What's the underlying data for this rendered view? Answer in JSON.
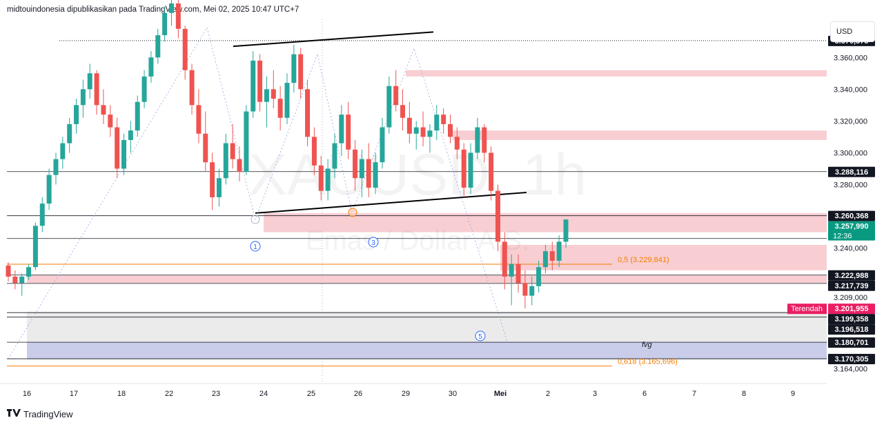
{
  "header": {
    "title": "midtouindonesia dipublikasikan pada TradingView.com, Mei 02, 2025 10:47 UTC+7"
  },
  "watermark": {
    "symbol": "XAUUSD, 1h",
    "subtitle": "Emas / Dollar A.S."
  },
  "currency": "USD",
  "footer": {
    "brand": "TradingView",
    "logo_icon": "tradingview-logo-icon"
  },
  "colors": {
    "up": "#26a69a",
    "down": "#ef5350",
    "zone": "#f7c5ca",
    "zone_blue": "#c5cae9",
    "zone_gray": "#e8e8e8",
    "fib": "#f57c00",
    "current": "#089981",
    "low_badge": "#e91e63"
  },
  "chart_data": {
    "type": "candlestick",
    "timeframe": "1h",
    "price_axis": {
      "range": [
        3156,
        3384
      ],
      "ticks": [
        "3.360,000",
        "3.340,000",
        "3.320,000",
        "3.300,000",
        "3.280,000",
        "3.240,000",
        "3.209,000",
        "3.164,000"
      ],
      "tick_values": [
        3360,
        3340,
        3320,
        3300,
        3280,
        3240,
        3209,
        3164
      ]
    },
    "time_axis": {
      "labels": [
        "16",
        "17",
        "18",
        "22",
        "23",
        "24",
        "25",
        "26",
        "29",
        "30",
        "Mei",
        "2",
        "3",
        "6",
        "7",
        "8",
        "9"
      ]
    },
    "price_labels": [
      {
        "value": 3370.575,
        "text": "3.370,575",
        "style": "dark"
      },
      {
        "value": 3288.116,
        "text": "3.288,116",
        "style": "dark"
      },
      {
        "value": 3260.368,
        "text": "3.260,368",
        "style": "dark"
      },
      {
        "value": 3257.99,
        "text": "3.257,990",
        "style": "current",
        "countdown": "12:36"
      },
      {
        "value": 3222.988,
        "text": "3.222,988",
        "style": "dark"
      },
      {
        "value": 3217.739,
        "text": "3.217,739",
        "style": "dark"
      },
      {
        "value": 3201.955,
        "text": "3.201,955",
        "style": "low",
        "label": "Terendah"
      },
      {
        "value": 3199.358,
        "text": "3.199,358",
        "style": "dark"
      },
      {
        "value": 3196.518,
        "text": "3.196,518",
        "style": "dark"
      },
      {
        "value": 3180.701,
        "text": "3.180,701",
        "style": "dark"
      },
      {
        "value": 3170.305,
        "text": "3.170,305",
        "style": "dark"
      }
    ],
    "horizontal_lines": [
      3370.575,
      3288.116,
      3260.368,
      3246,
      3222.988,
      3217.739,
      3199.358,
      3196.518,
      3180.701,
      3170.305
    ],
    "zones": [
      {
        "type": "supply",
        "from": 3348,
        "to": 3352,
        "x_start": "29",
        "color": "zone"
      },
      {
        "type": "supply",
        "from": 3308,
        "to": 3314,
        "x_start": "30",
        "color": "zone"
      },
      {
        "type": "supply",
        "from": 3250,
        "to": 3262,
        "x_start": "24",
        "color": "zone"
      },
      {
        "type": "supply",
        "from": 3226,
        "to": 3242,
        "x_start": "Mei",
        "color": "zone"
      },
      {
        "type": "supply",
        "from": 3218,
        "to": 3223,
        "x_start": "16",
        "color": "zone"
      },
      {
        "type": "demand",
        "from": 3170,
        "to": 3200,
        "x_start": "16",
        "color": "zone_gray"
      },
      {
        "type": "demand",
        "from": 3170,
        "to": 3181,
        "x_start": "16",
        "color": "zone_blue"
      }
    ],
    "fib_levels": [
      {
        "ratio": "0,5",
        "value": 3229.841,
        "text": "0,5 (3.229,841)"
      },
      {
        "ratio": "0,618",
        "value": 3165.696,
        "text": "0,618 (3.165,696)"
      }
    ],
    "annotations": [
      {
        "text": "fvg"
      }
    ],
    "wave_labels": [
      "1",
      "3",
      "5"
    ],
    "trendlines": [
      {
        "name": "upper",
        "from": [
          "23",
          3367
        ],
        "to": [
          "29",
          3376
        ]
      },
      {
        "name": "lower",
        "from": [
          "24",
          3262
        ],
        "to": [
          "Mei",
          3275
        ]
      }
    ],
    "candles": [
      [
        3229,
        3231,
        3219,
        3222
      ],
      [
        3222,
        3226,
        3214,
        3218
      ],
      [
        3218,
        3224,
        3210,
        3222
      ],
      [
        3222,
        3230,
        3220,
        3228
      ],
      [
        3228,
        3256,
        3226,
        3254
      ],
      [
        3254,
        3272,
        3250,
        3268
      ],
      [
        3268,
        3290,
        3264,
        3286
      ],
      [
        3286,
        3300,
        3280,
        3296
      ],
      [
        3296,
        3310,
        3290,
        3306
      ],
      [
        3306,
        3322,
        3300,
        3318
      ],
      [
        3318,
        3334,
        3312,
        3330
      ],
      [
        3330,
        3346,
        3322,
        3340
      ],
      [
        3340,
        3356,
        3334,
        3350
      ],
      [
        3350,
        3352,
        3324,
        3330
      ],
      [
        3330,
        3340,
        3318,
        3324
      ],
      [
        3324,
        3330,
        3310,
        3316
      ],
      [
        3316,
        3322,
        3284,
        3290
      ],
      [
        3290,
        3312,
        3286,
        3308
      ],
      [
        3308,
        3320,
        3300,
        3314
      ],
      [
        3314,
        3336,
        3310,
        3332
      ],
      [
        3332,
        3352,
        3328,
        3348
      ],
      [
        3348,
        3364,
        3344,
        3360
      ],
      [
        3360,
        3378,
        3356,
        3374
      ],
      [
        3374,
        3392,
        3370,
        3388
      ],
      [
        3388,
        3398,
        3380,
        3394
      ],
      [
        3394,
        3398,
        3372,
        3378
      ],
      [
        3378,
        3380,
        3346,
        3352
      ],
      [
        3352,
        3356,
        3324,
        3330
      ],
      [
        3330,
        3340,
        3306,
        3312
      ],
      [
        3312,
        3326,
        3288,
        3294
      ],
      [
        3294,
        3300,
        3264,
        3272
      ],
      [
        3272,
        3290,
        3266,
        3284
      ],
      [
        3284,
        3312,
        3280,
        3306
      ],
      [
        3306,
        3318,
        3290,
        3296
      ],
      [
        3296,
        3304,
        3282,
        3288
      ],
      [
        3288,
        3330,
        3286,
        3326
      ],
      [
        3326,
        3364,
        3322,
        3358
      ],
      [
        3358,
        3362,
        3326,
        3332
      ],
      [
        3332,
        3348,
        3316,
        3340
      ],
      [
        3340,
        3352,
        3328,
        3334
      ],
      [
        3334,
        3342,
        3314,
        3322
      ],
      [
        3322,
        3350,
        3318,
        3344
      ],
      [
        3344,
        3368,
        3338,
        3362
      ],
      [
        3362,
        3366,
        3334,
        3340
      ],
      [
        3340,
        3346,
        3304,
        3310
      ],
      [
        3310,
        3316,
        3286,
        3292
      ],
      [
        3292,
        3298,
        3270,
        3276
      ],
      [
        3276,
        3296,
        3270,
        3290
      ],
      [
        3290,
        3312,
        3284,
        3306
      ],
      [
        3306,
        3330,
        3298,
        3324
      ],
      [
        3324,
        3332,
        3296,
        3302
      ],
      [
        3302,
        3308,
        3276,
        3284
      ],
      [
        3284,
        3302,
        3272,
        3296
      ],
      [
        3296,
        3306,
        3272,
        3278
      ],
      [
        3278,
        3300,
        3274,
        3294
      ],
      [
        3294,
        3322,
        3290,
        3316
      ],
      [
        3316,
        3348,
        3312,
        3342
      ],
      [
        3342,
        3352,
        3326,
        3330
      ],
      [
        3330,
        3340,
        3314,
        3322
      ],
      [
        3322,
        3332,
        3306,
        3312
      ],
      [
        3312,
        3320,
        3302,
        3316
      ],
      [
        3316,
        3326,
        3304,
        3310
      ],
      [
        3310,
        3318,
        3300,
        3314
      ],
      [
        3314,
        3330,
        3308,
        3324
      ],
      [
        3324,
        3328,
        3312,
        3318
      ],
      [
        3318,
        3324,
        3306,
        3310
      ],
      [
        3310,
        3316,
        3296,
        3302
      ],
      [
        3302,
        3306,
        3272,
        3278
      ],
      [
        3278,
        3306,
        3274,
        3300
      ],
      [
        3300,
        3322,
        3296,
        3316
      ],
      [
        3316,
        3318,
        3294,
        3300
      ],
      [
        3300,
        3304,
        3270,
        3276
      ],
      [
        3276,
        3280,
        3238,
        3244
      ],
      [
        3244,
        3250,
        3214,
        3222
      ],
      [
        3222,
        3236,
        3204,
        3230
      ],
      [
        3230,
        3236,
        3212,
        3218
      ],
      [
        3218,
        3226,
        3202,
        3210
      ],
      [
        3210,
        3222,
        3204,
        3216
      ],
      [
        3216,
        3232,
        3212,
        3228
      ],
      [
        3228,
        3242,
        3224,
        3238
      ],
      [
        3238,
        3244,
        3226,
        3232
      ],
      [
        3232,
        3248,
        3228,
        3244
      ],
      [
        3244,
        3258,
        3240,
        3258
      ]
    ]
  }
}
